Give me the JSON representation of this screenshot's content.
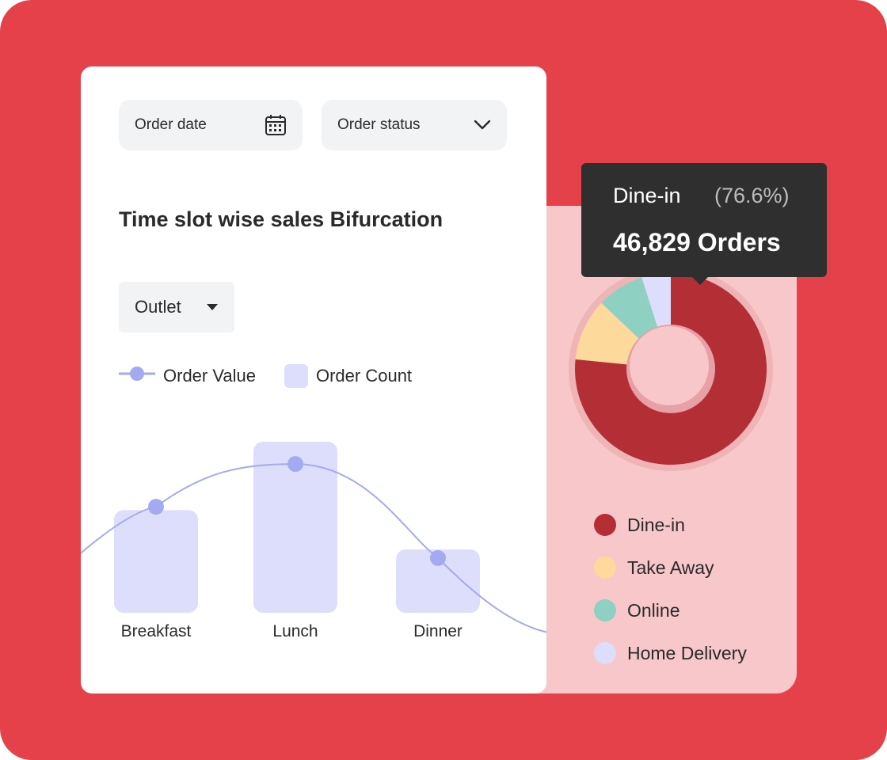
{
  "filters": {
    "order_date": {
      "label": "Order date",
      "icon": "calendar-icon"
    },
    "order_status": {
      "label": "Order status",
      "icon": "chevron-down-icon"
    }
  },
  "title": "Time slot wise sales Bifurcation",
  "outlet": {
    "label": "Outlet",
    "icon": "caret-down-icon"
  },
  "legend": {
    "line": "Order Value",
    "bar": "Order Count"
  },
  "colors": {
    "background": "#e5414a",
    "bar": "#dcdefb",
    "line": "#a3aaf1",
    "dine_in": "#b42e35",
    "take_away": "#fed99c",
    "online": "#8ed0c2",
    "home_delivery": "#dcdefb"
  },
  "tooltip": {
    "name": "Dine-in",
    "percent": "(76.6%)",
    "orders": "46,829 Orders"
  },
  "chart_data": [
    {
      "type": "bar",
      "title": "Time slot wise sales Bifurcation",
      "categories": [
        "Breakfast",
        "Lunch",
        "Dinner"
      ],
      "series": [
        {
          "name": "Order Count",
          "type": "bar",
          "values": [
            0.6,
            1.0,
            0.37
          ]
        },
        {
          "name": "Order Value",
          "type": "line",
          "values": [
            0.62,
            0.87,
            0.32
          ]
        }
      ],
      "ylim": [
        0,
        1
      ],
      "grid": false
    },
    {
      "type": "pie",
      "donut": true,
      "slices": [
        {
          "label": "Dine-in",
          "value": 76.6,
          "color": "#b42e35"
        },
        {
          "label": "Take Away",
          "value": 10.5,
          "color": "#fed99c"
        },
        {
          "label": "Online",
          "value": 8.0,
          "color": "#8ed0c2"
        },
        {
          "label": "Home Delivery",
          "value": 4.9,
          "color": "#dcdefb"
        }
      ],
      "highlighted": "Dine-in"
    }
  ]
}
